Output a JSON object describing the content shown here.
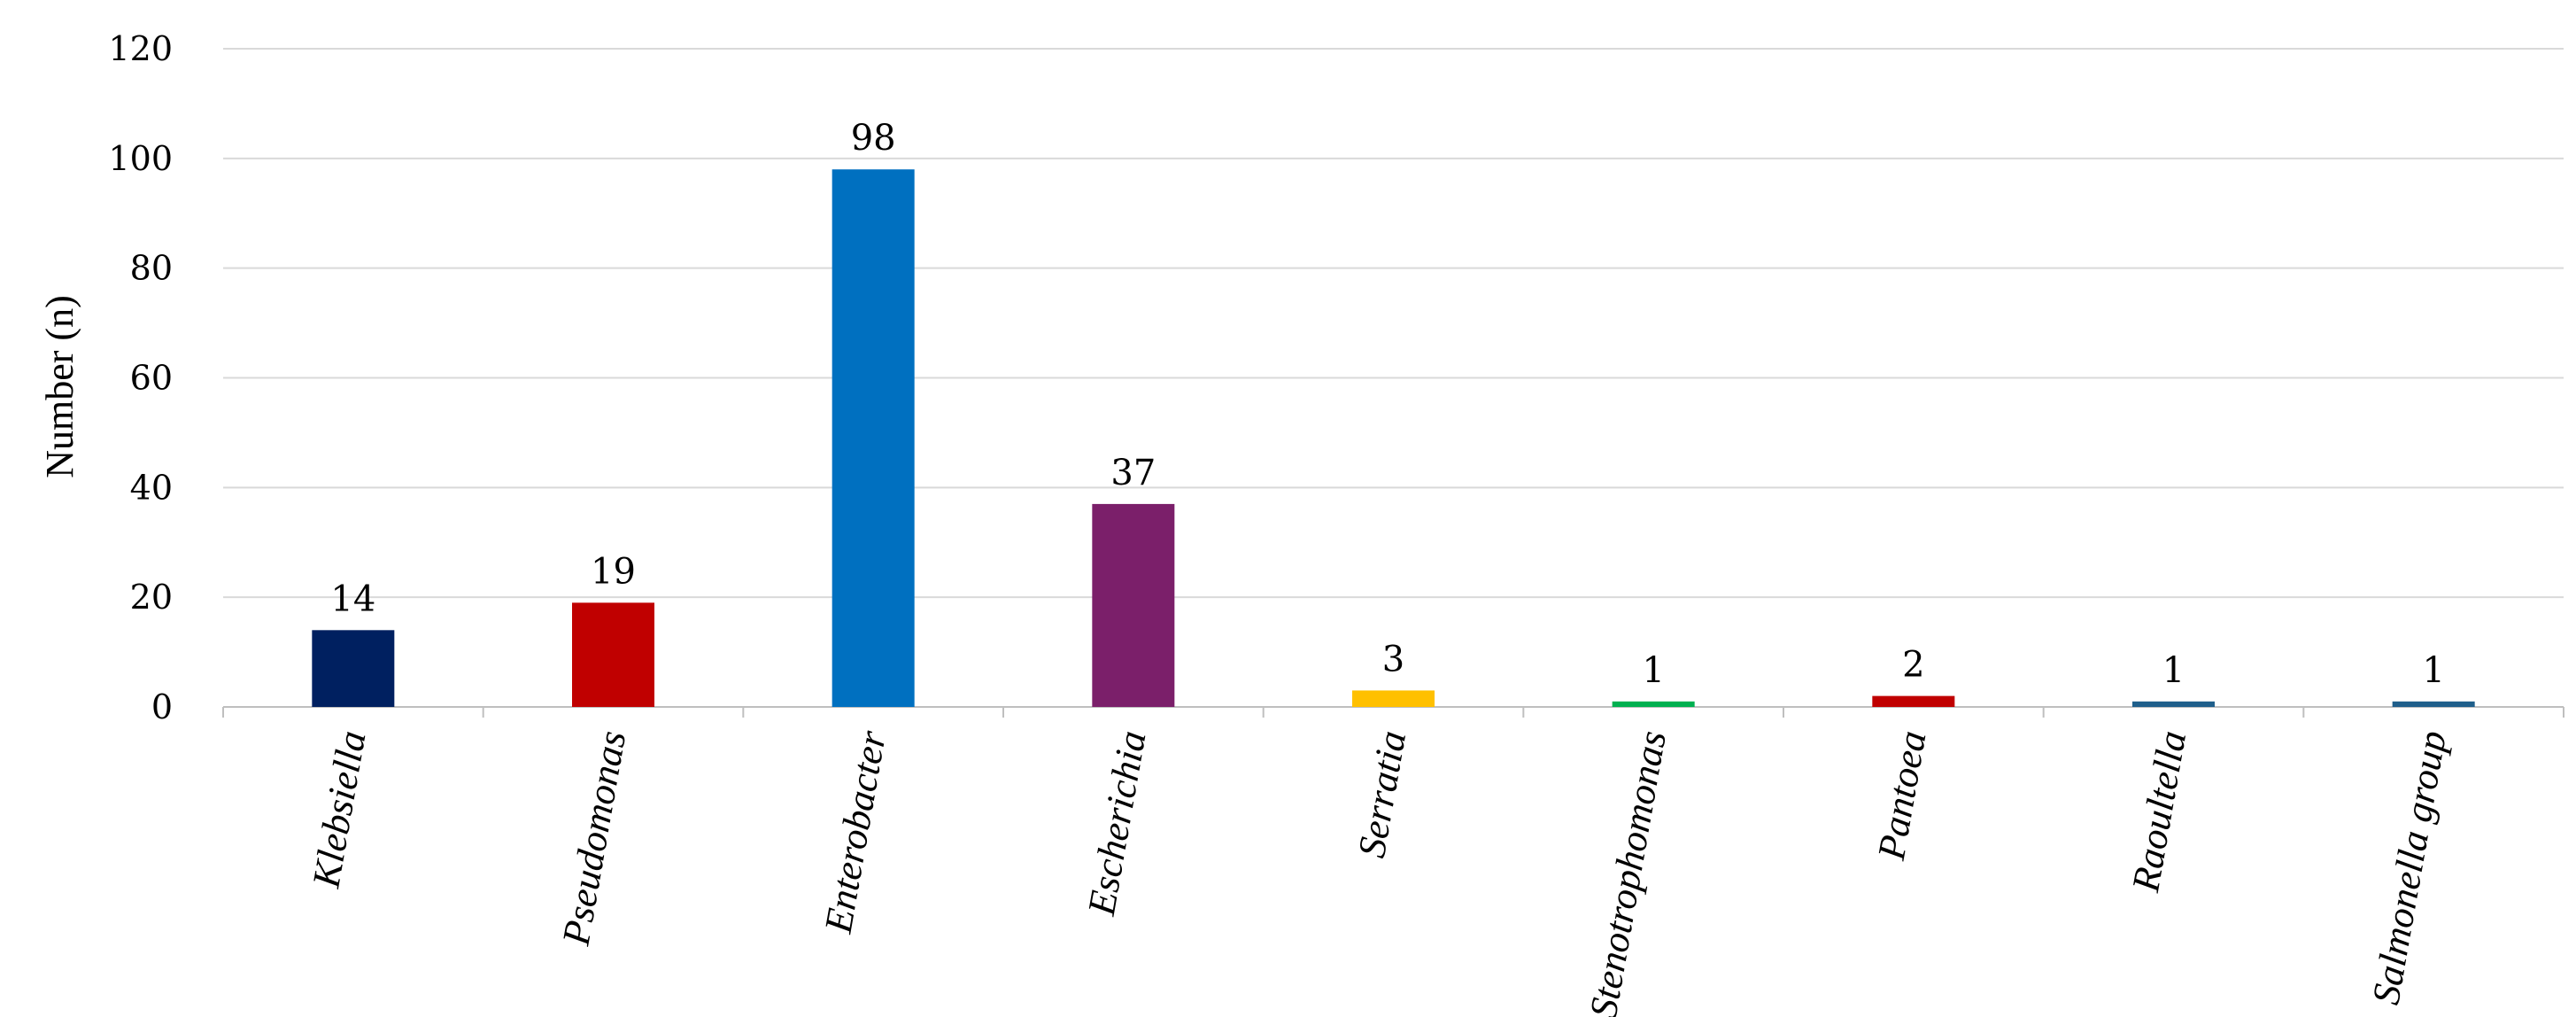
{
  "chart_data": {
    "type": "bar",
    "categories": [
      "Klebsiella",
      "Pseudomonas",
      "Enterobacter",
      "Escherichia",
      "Serratia",
      "Stenotrophomonas",
      "Pantoea",
      "Raoultella",
      "Salmonella group"
    ],
    "values": [
      14,
      19,
      98,
      37,
      3,
      1,
      2,
      1,
      1
    ],
    "data_labels": [
      "14",
      "19",
      "98",
      "37",
      "3",
      "1",
      "2",
      "1",
      "1"
    ],
    "colors": [
      "#002060",
      "#C00000",
      "#0070C0",
      "#7B1F6A",
      "#FFC000",
      "#00B050",
      "#C00000",
      "#1F5F8B",
      "#1F5F8B"
    ],
    "title": "",
    "xlabel": "",
    "ylabel": "Number (n)",
    "ylim": [
      0,
      120
    ],
    "yticks": [
      0,
      20,
      40,
      60,
      80,
      100,
      120
    ],
    "grid": true,
    "legend": "none"
  }
}
